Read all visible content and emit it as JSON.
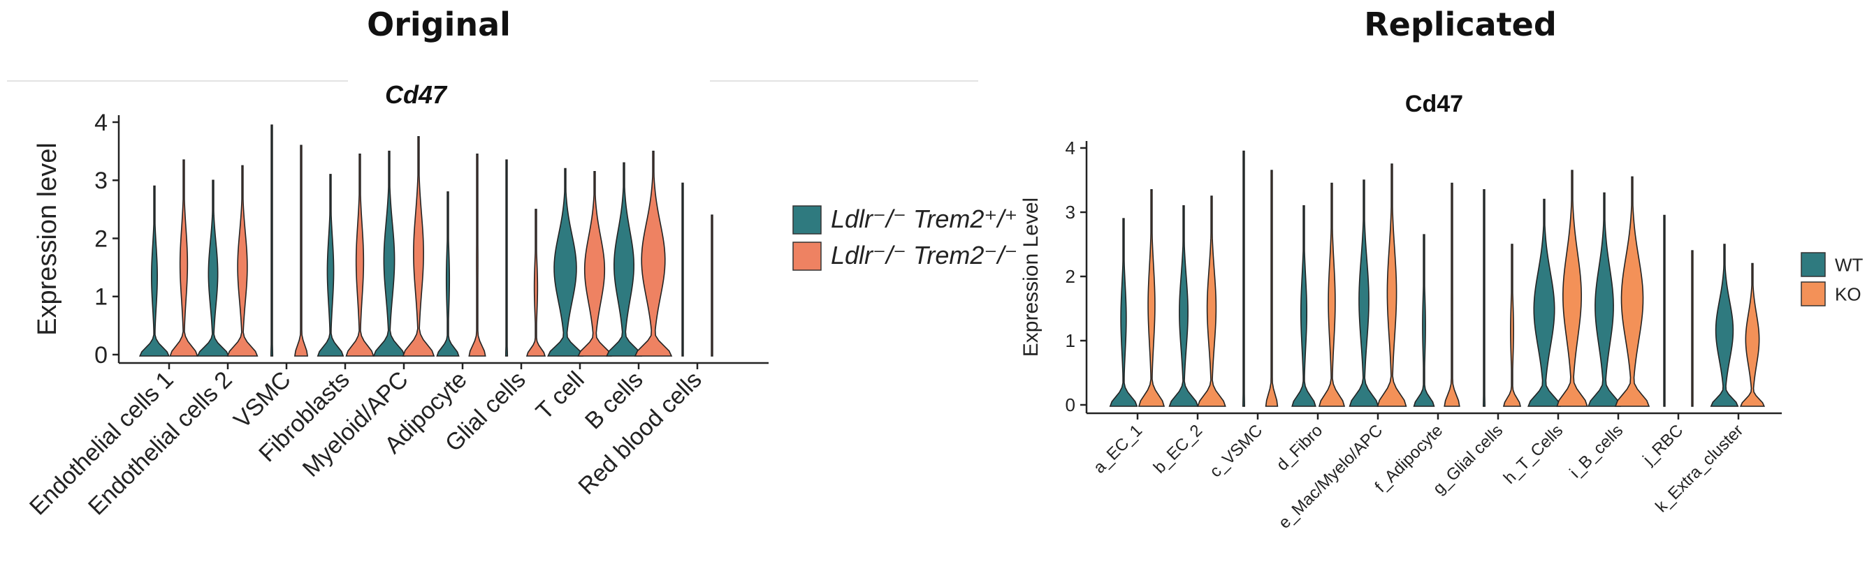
{
  "headings": {
    "left": "Original",
    "right": "Replicated"
  },
  "colors": {
    "wt": "#2f7a7f",
    "ko": "#ee8262",
    "ko_right": "#f39158",
    "axis": "#222222"
  },
  "chart_data": [
    {
      "type": "violin",
      "title": "Cd47",
      "ylabel": "Expression level",
      "xlabel": "",
      "ylim": [
        0,
        4
      ],
      "yticks": [
        0,
        1,
        2,
        3,
        4
      ],
      "legend": {
        "position": "right",
        "labels": [
          "Ldlr⁻/⁻ Trem2⁺/⁺",
          "Ldlr⁻/⁻ Trem2⁻/⁻"
        ]
      },
      "categories": [
        "Endothelial cells 1",
        "Endothelial cells 2",
        "VSMC",
        "Fibroblasts",
        "Myeloid/APC",
        "Adipocyte",
        "Glial cells",
        "T cell",
        "B cells",
        "Red blood cells"
      ],
      "series": [
        {
          "group": "wt",
          "max": [
            2.9,
            3.0,
            3.95,
            3.1,
            3.5,
            2.8,
            3.35,
            3.2,
            3.3,
            2.95
          ],
          "width": [
            0.8,
            0.85,
            0.05,
            0.7,
            0.85,
            0.6,
            0.05,
            0.95,
            0.95,
            0.02
          ],
          "body": [
            0.28,
            0.42,
            0.0,
            0.35,
            0.48,
            0.2,
            0.0,
            0.9,
            0.8,
            0.0
          ]
        },
        {
          "group": "ko",
          "max": [
            3.35,
            3.25,
            3.6,
            3.45,
            3.75,
            3.45,
            2.5,
            3.15,
            3.5,
            2.4
          ],
          "width": [
            0.75,
            0.82,
            0.35,
            0.75,
            0.85,
            0.45,
            0.5,
            0.9,
            1.0,
            0.02
          ],
          "body": [
            0.38,
            0.45,
            0.05,
            0.38,
            0.45,
            0.12,
            0.25,
            0.85,
            0.9,
            0.0
          ]
        }
      ]
    },
    {
      "type": "violin",
      "title": "Cd47",
      "ylabel": "Expression Level",
      "xlabel": "",
      "ylim": [
        0,
        4
      ],
      "yticks": [
        0,
        1,
        2,
        3,
        4
      ],
      "legend": {
        "position": "right",
        "labels": [
          "WT",
          "KO"
        ]
      },
      "categories": [
        "a_EC_1",
        "b_EC_2",
        "c_VSMC",
        "d_Fibro",
        "e_Mac/Myelo/APC",
        "f_Adipocyte",
        "g_Glial cells",
        "h_T_Cells",
        "i_B_cells",
        "j_RBC",
        "k_Extra_cluster"
      ],
      "series": [
        {
          "group": "WT",
          "max": [
            2.9,
            3.1,
            3.95,
            3.1,
            3.5,
            2.65,
            3.35,
            3.2,
            3.3,
            2.95,
            2.5
          ],
          "width": [
            0.8,
            0.85,
            0.05,
            0.7,
            0.85,
            0.6,
            0.05,
            0.95,
            0.95,
            0.02,
            0.8
          ],
          "body": [
            0.28,
            0.42,
            0.0,
            0.35,
            0.48,
            0.2,
            0.0,
            0.9,
            0.8,
            0.0,
            0.9
          ]
        },
        {
          "group": "KO",
          "max": [
            3.35,
            3.25,
            3.65,
            3.45,
            3.75,
            3.45,
            2.5,
            3.65,
            3.55,
            2.4,
            2.2
          ],
          "width": [
            0.75,
            0.82,
            0.35,
            0.75,
            0.85,
            0.45,
            0.5,
            0.9,
            1.0,
            0.02,
            0.7
          ],
          "body": [
            0.38,
            0.45,
            0.05,
            0.38,
            0.45,
            0.12,
            0.25,
            0.85,
            0.9,
            0.0,
            0.8
          ]
        }
      ]
    }
  ]
}
